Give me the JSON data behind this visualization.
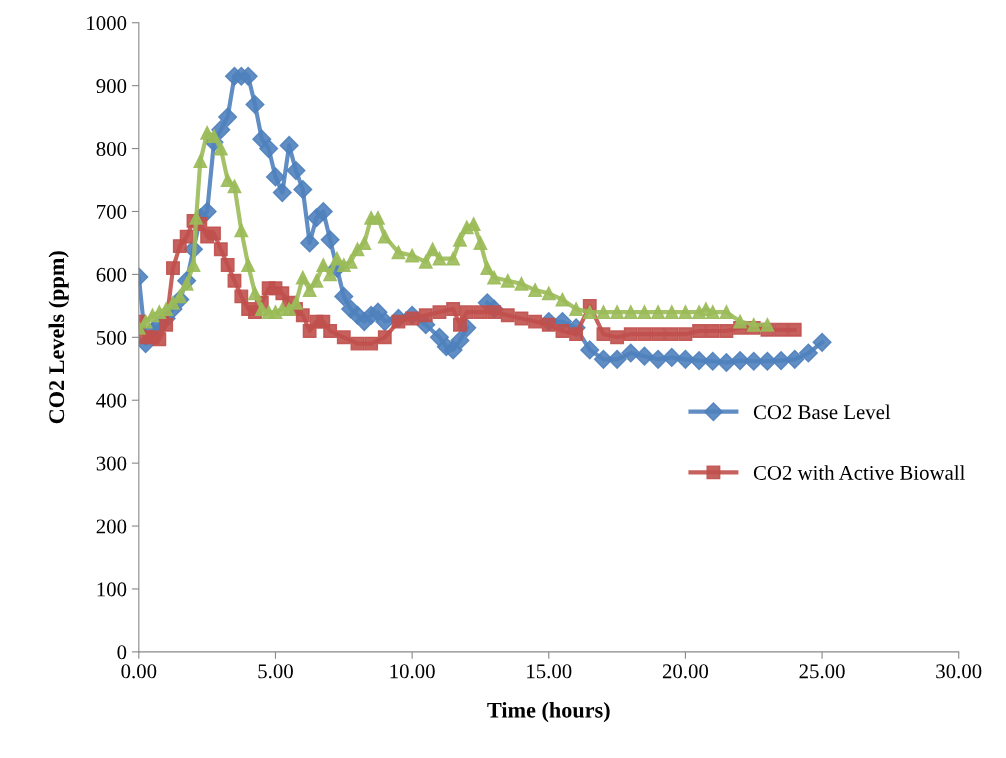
{
  "chart_data": {
    "type": "line",
    "xlabel": "Time (hours)",
    "ylabel": "CO2 Levels (ppm)",
    "xlim": [
      0,
      30
    ],
    "xticks": [
      {
        "value": 0,
        "label": "0.00"
      },
      {
        "value": 5,
        "label": "5.00"
      },
      {
        "value": 10,
        "label": "10.00"
      },
      {
        "value": 15,
        "label": "15.00"
      },
      {
        "value": 20,
        "label": "20.00"
      },
      {
        "value": 25,
        "label": "25.00"
      },
      {
        "value": 30,
        "label": "30.00"
      }
    ],
    "ylim": [
      0,
      1000
    ],
    "yticks": [
      0,
      100,
      200,
      300,
      400,
      500,
      600,
      700,
      800,
      900,
      1000
    ],
    "grid": false,
    "legend": "right",
    "series": [
      {
        "name": "CO2 Base Level",
        "color": "#4f81bd",
        "marker": "diamond",
        "x": [
          0,
          0.25,
          0.5,
          0.75,
          1,
          1.25,
          1.5,
          1.75,
          2,
          2.25,
          2.5,
          2.75,
          3,
          3.25,
          3.5,
          3.75,
          4,
          4.25,
          4.5,
          4.75,
          5,
          5.25,
          5.5,
          5.75,
          6,
          6.25,
          6.5,
          6.75,
          7,
          7.25,
          7.5,
          7.75,
          8,
          8.25,
          8.5,
          8.75,
          9,
          9.5,
          10,
          10.5,
          11,
          11.25,
          11.5,
          11.75,
          12,
          12.5,
          12.75,
          13,
          13.5,
          14,
          14.5,
          15,
          15.5,
          16,
          16.5,
          17,
          17.5,
          18,
          18.5,
          19,
          19.5,
          20,
          20.5,
          21,
          21.5,
          22,
          22.5,
          23,
          23.5,
          24,
          24.5,
          25
        ],
        "values": [
          596,
          490,
          510,
          520,
          530,
          545,
          560,
          590,
          640,
          690,
          700,
          810,
          830,
          850,
          915,
          915,
          915,
          870,
          815,
          800,
          755,
          730,
          805,
          765,
          735,
          650,
          690,
          700,
          655,
          610,
          565,
          545,
          535,
          525,
          535,
          540,
          525,
          530,
          535,
          520,
          500,
          485,
          480,
          495,
          515,
          null,
          555,
          545,
          null,
          null,
          null,
          525,
          525,
          515,
          480,
          465,
          465,
          475,
          470,
          465,
          468,
          465,
          463,
          462,
          460,
          463,
          462,
          462,
          463,
          465,
          475,
          492
        ]
      },
      {
        "name": "CO2 with Active Biowall",
        "color": "#c0504d",
        "marker": "square",
        "x": [
          0,
          0.25,
          0.5,
          0.75,
          1,
          1.25,
          1.5,
          1.75,
          2,
          2.25,
          2.5,
          2.75,
          3,
          3.25,
          3.5,
          3.75,
          4,
          4.25,
          4.5,
          4.75,
          5,
          5.25,
          5.5,
          5.75,
          6,
          6.25,
          6.5,
          6.75,
          7,
          7.5,
          8,
          8.5,
          9,
          9.5,
          10,
          10.5,
          11,
          11.5,
          11.75,
          12,
          12.5,
          13,
          13.5,
          14,
          14.5,
          15,
          15.5,
          16,
          16.5,
          17,
          17.5,
          18,
          18.5,
          19,
          19.5,
          20,
          20.5,
          21,
          21.5,
          22,
          22.5,
          23,
          23.5,
          24
        ],
        "values": [
          525,
          500,
          500,
          497,
          520,
          610,
          645,
          660,
          685,
          680,
          660,
          665,
          640,
          615,
          590,
          565,
          545,
          540,
          555,
          578,
          578,
          570,
          555,
          545,
          535,
          510,
          525,
          525,
          510,
          500,
          490,
          490,
          500,
          525,
          530,
          535,
          540,
          545,
          520,
          540,
          540,
          540,
          535,
          530,
          525,
          520,
          510,
          505,
          550,
          505,
          500,
          505,
          505,
          505,
          505,
          505,
          510,
          510,
          510,
          515,
          515,
          512,
          512,
          512
        ]
      },
      {
        "color": "#9bbb59",
        "marker": "triangle",
        "x": [
          0,
          0.25,
          0.5,
          0.75,
          1,
          1.25,
          1.5,
          1.75,
          2,
          2.1,
          2.25,
          2.5,
          2.75,
          3,
          3.25,
          3.5,
          3.75,
          4,
          4.25,
          4.5,
          4.75,
          5,
          5.25,
          5.5,
          5.75,
          6,
          6.25,
          6.5,
          6.75,
          7,
          7.25,
          7.5,
          7.75,
          8,
          8.25,
          8.5,
          8.75,
          9,
          9.5,
          10,
          10.5,
          10.75,
          11,
          11.5,
          11.75,
          12,
          12.25,
          12.5,
          12.75,
          13,
          13.5,
          14,
          14.5,
          15,
          15.5,
          16,
          16.5,
          17,
          17.5,
          18,
          18.5,
          19,
          19.5,
          20,
          20.5,
          20.75,
          21,
          21.5,
          22,
          22.5,
          23
        ],
        "values": [
          515,
          525,
          535,
          540,
          545,
          555,
          565,
          585,
          615,
          690,
          780,
          825,
          820,
          800,
          750,
          740,
          670,
          615,
          570,
          545,
          540,
          540,
          545,
          545,
          555,
          595,
          575,
          590,
          615,
          600,
          625,
          615,
          620,
          640,
          650,
          690,
          690,
          660,
          635,
          630,
          620,
          640,
          625,
          625,
          655,
          675,
          680,
          650,
          610,
          595,
          590,
          585,
          575,
          570,
          560,
          545,
          540,
          540,
          540,
          540,
          540,
          540,
          540,
          540,
          540,
          545,
          540,
          540,
          525,
          520,
          520
        ]
      }
    ]
  }
}
